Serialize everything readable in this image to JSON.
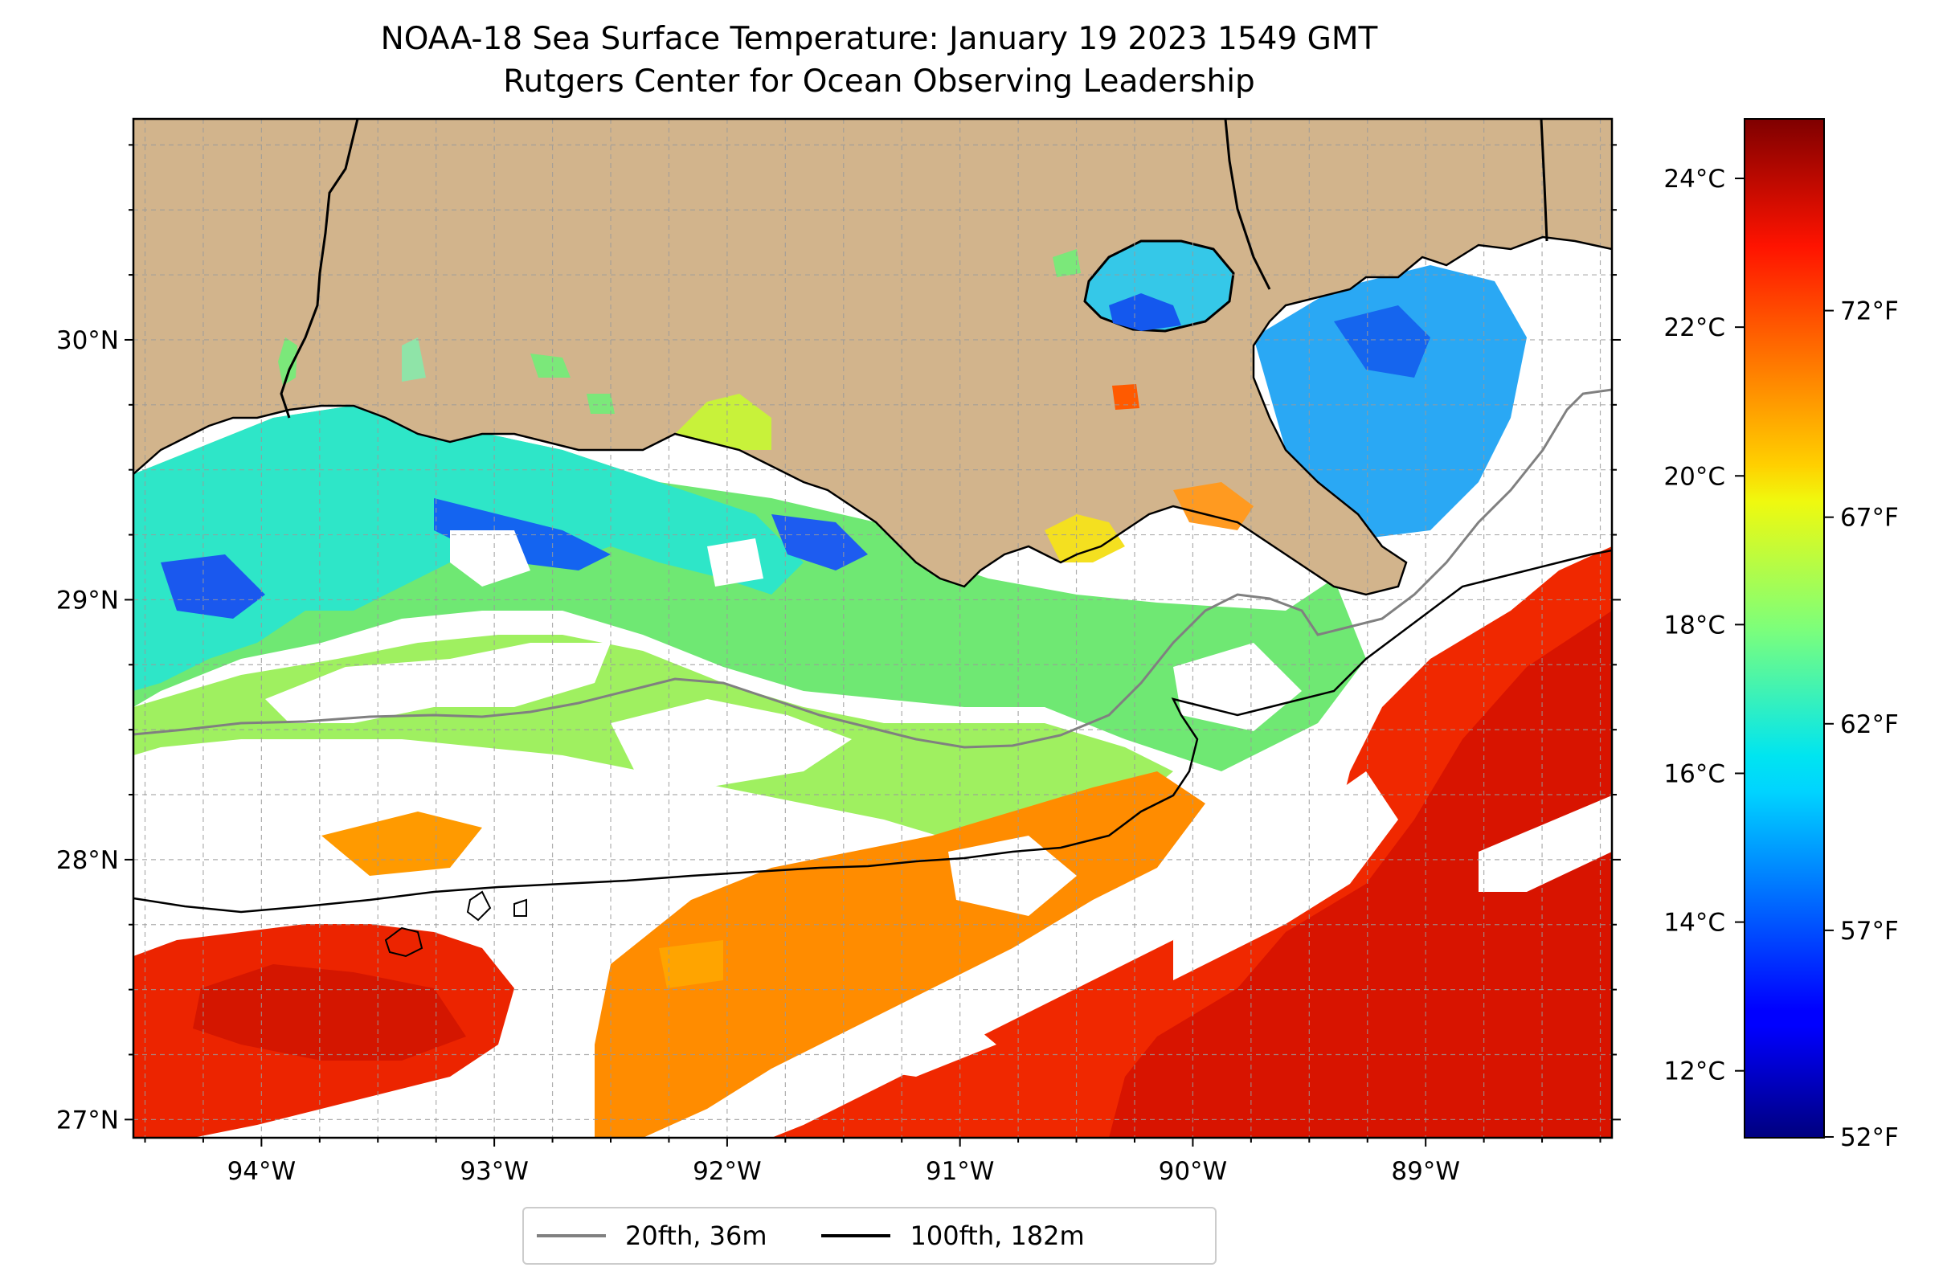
{
  "title": {
    "line1": "NOAA-18 Sea Surface Temperature: January 19 2023 1549 GMT",
    "line2": "Rutgers Center for Ocean Observing Leadership"
  },
  "map": {
    "lon_range": [
      -94.55,
      -88.2
    ],
    "lat_range": [
      26.93,
      30.85
    ],
    "lon_ticks": [
      {
        "value": -94,
        "label": "94°W"
      },
      {
        "value": -93,
        "label": "93°W"
      },
      {
        "value": -92,
        "label": "92°W"
      },
      {
        "value": -91,
        "label": "91°W"
      },
      {
        "value": -90,
        "label": "90°W"
      },
      {
        "value": -89,
        "label": "89°W"
      }
    ],
    "lat_ticks": [
      {
        "value": 30,
        "label": "30°N"
      },
      {
        "value": 29,
        "label": "29°N"
      },
      {
        "value": 28,
        "label": "28°N"
      },
      {
        "value": 27,
        "label": "27°N"
      }
    ],
    "grid": "dashed, 0.25° spacing",
    "land_color": "#d2b48c",
    "no_data_color": "#ffffff"
  },
  "colorbar": {
    "colormap": "jet",
    "range_c": [
      11.1,
      24.8
    ],
    "celsius_ticks": [
      {
        "value": 12,
        "label": "12°C"
      },
      {
        "value": 14,
        "label": "14°C"
      },
      {
        "value": 16,
        "label": "16°C"
      },
      {
        "value": 18,
        "label": "18°C"
      },
      {
        "value": 20,
        "label": "20°C"
      },
      {
        "value": 22,
        "label": "22°C"
      },
      {
        "value": 24,
        "label": "24°C"
      }
    ],
    "fahrenheit_ticks": [
      {
        "value": 52,
        "label": "52°F"
      },
      {
        "value": 57,
        "label": "57°F"
      },
      {
        "value": 62,
        "label": "62°F"
      },
      {
        "value": 67,
        "label": "67°F"
      },
      {
        "value": 72,
        "label": "72°F"
      }
    ]
  },
  "legend": {
    "items": [
      {
        "label": "20fth, 36m",
        "color": "#808080"
      },
      {
        "label": "100fth, 182m",
        "color": "#000000"
      }
    ]
  }
}
